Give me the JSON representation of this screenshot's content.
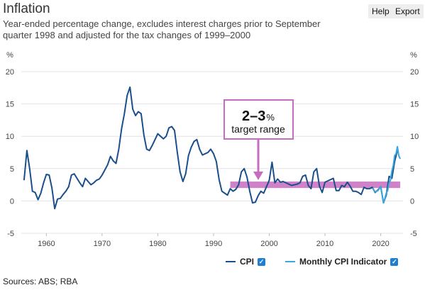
{
  "header": {
    "title": "Inflation",
    "subtitle": "Year-ended percentage change, excludes interest charges prior to September quarter 1998 and adjusted for the tax changes of 1999–2000",
    "help_label": "Help",
    "export_label": "Export"
  },
  "footer": {
    "sources": "Sources: ABS; RBA"
  },
  "legend": {
    "cpi_label": "CPI",
    "monthly_label": "Monthly CPI Indicator",
    "check_glyph": "✓"
  },
  "annotation": {
    "range": "2–3",
    "unit": "%",
    "caption": "target range"
  },
  "colors": {
    "cpi": "#1b4f8c",
    "monthly": "#3aa7de",
    "target_band": "#c86cc0",
    "grid": "#e4e4e4",
    "axis_text": "#444444"
  },
  "chart_data": {
    "type": "line",
    "xlim": [
      1955.5,
      2024
    ],
    "ylim": [
      -5,
      20
    ],
    "y_unit_left": "%",
    "y_unit_right": "%",
    "x_ticks": [
      "1960",
      "1970",
      "1980",
      "1990",
      "2000",
      "2010",
      "2020"
    ],
    "y_ticks": [
      "-5",
      "0",
      "5",
      "10",
      "15",
      "20"
    ],
    "target_band": {
      "x_start": 1993,
      "x_end": 2023.5,
      "y_min": 2,
      "y_max": 3
    },
    "series": [
      {
        "name": "CPI",
        "x": [
          1956.0,
          1956.5,
          1957.0,
          1957.5,
          1958.0,
          1958.5,
          1959.0,
          1959.5,
          1960.0,
          1960.5,
          1961.0,
          1961.5,
          1962.0,
          1962.5,
          1963.0,
          1963.5,
          1964.0,
          1964.5,
          1965.0,
          1965.5,
          1966.0,
          1966.5,
          1967.0,
          1967.5,
          1968.0,
          1968.5,
          1969.0,
          1969.5,
          1970.0,
          1970.5,
          1971.0,
          1971.5,
          1972.0,
          1972.5,
          1973.0,
          1973.5,
          1974.0,
          1974.5,
          1975.0,
          1975.5,
          1976.0,
          1976.5,
          1977.0,
          1977.5,
          1978.0,
          1978.5,
          1979.0,
          1979.5,
          1980.0,
          1980.5,
          1981.0,
          1981.5,
          1982.0,
          1982.5,
          1983.0,
          1983.5,
          1984.0,
          1984.5,
          1985.0,
          1985.5,
          1986.0,
          1986.5,
          1987.0,
          1987.5,
          1988.0,
          1988.5,
          1989.0,
          1989.5,
          1990.0,
          1990.5,
          1991.0,
          1991.5,
          1992.0,
          1992.5,
          1993.0,
          1993.5,
          1994.0,
          1994.5,
          1995.0,
          1995.5,
          1996.0,
          1996.5,
          1997.0,
          1997.5,
          1998.0,
          1998.5,
          1999.0,
          1999.5,
          2000.0,
          2000.5,
          2001.0,
          2001.5,
          2002.0,
          2002.5,
          2003.0,
          2003.5,
          2004.0,
          2004.5,
          2005.0,
          2005.5,
          2006.0,
          2006.5,
          2007.0,
          2007.5,
          2008.0,
          2008.5,
          2009.0,
          2009.5,
          2010.0,
          2010.5,
          2011.0,
          2011.5,
          2012.0,
          2012.5,
          2013.0,
          2013.5,
          2014.0,
          2014.5,
          2015.0,
          2015.5,
          2016.0,
          2016.5,
          2017.0,
          2017.5,
          2018.0,
          2018.5,
          2019.0,
          2019.5,
          2020.0,
          2020.5,
          2021.0,
          2021.5,
          2022.0,
          2022.5,
          2023.0
        ],
        "values": [
          3.2,
          7.8,
          5.0,
          1.5,
          1.3,
          0.2,
          1.2,
          2.8,
          4.1,
          4.0,
          2.0,
          -1.2,
          0.3,
          0.4,
          1.0,
          1.5,
          2.2,
          4.0,
          4.2,
          3.5,
          2.8,
          2.2,
          3.5,
          3.0,
          2.5,
          2.8,
          3.2,
          3.4,
          4.0,
          4.8,
          5.6,
          6.9,
          6.2,
          5.8,
          8.0,
          11.2,
          13.5,
          16.3,
          17.6,
          14.2,
          13.2,
          13.8,
          13.5,
          10.2,
          8.0,
          7.8,
          8.6,
          9.5,
          10.4,
          10.0,
          9.6,
          10.0,
          11.3,
          11.5,
          10.9,
          7.5,
          4.5,
          3.0,
          4.2,
          7.0,
          8.3,
          9.2,
          9.5,
          8.0,
          7.1,
          7.3,
          7.5,
          8.0,
          7.3,
          6.1,
          3.3,
          1.5,
          1.2,
          0.9,
          1.9,
          1.5,
          1.8,
          2.5,
          4.5,
          5.0,
          3.7,
          1.5,
          -0.3,
          -0.2,
          0.8,
          1.5,
          1.2,
          2.2,
          3.2,
          6.0,
          2.8,
          3.4,
          2.9,
          3.0,
          2.8,
          2.6,
          2.4,
          2.5,
          2.6,
          2.8,
          3.8,
          4.0,
          2.4,
          1.9,
          4.5,
          5.0,
          2.3,
          1.3,
          2.9,
          3.1,
          3.3,
          3.5,
          1.6,
          1.6,
          2.4,
          2.2,
          2.9,
          2.3,
          1.5,
          1.5,
          1.3,
          1.0,
          2.1,
          1.9,
          1.9,
          2.1,
          1.3,
          1.7,
          2.2,
          -0.3,
          0.9,
          3.8,
          3.5,
          6.1,
          7.8
        ]
      },
      {
        "name": "Monthly CPI Indicator",
        "x": [
          2018.5,
          2019.0,
          2019.5,
          2020.0,
          2020.5,
          2020.75,
          2021.0,
          2021.25,
          2021.5,
          2021.75,
          2022.0,
          2022.25,
          2022.5,
          2022.75,
          2023.0,
          2023.25,
          2023.5
        ],
        "values": [
          2.0,
          1.4,
          1.6,
          2.2,
          -0.3,
          0.4,
          1.2,
          1.6,
          2.8,
          3.2,
          4.6,
          5.5,
          7.0,
          7.3,
          8.4,
          7.0,
          6.5
        ]
      }
    ]
  }
}
